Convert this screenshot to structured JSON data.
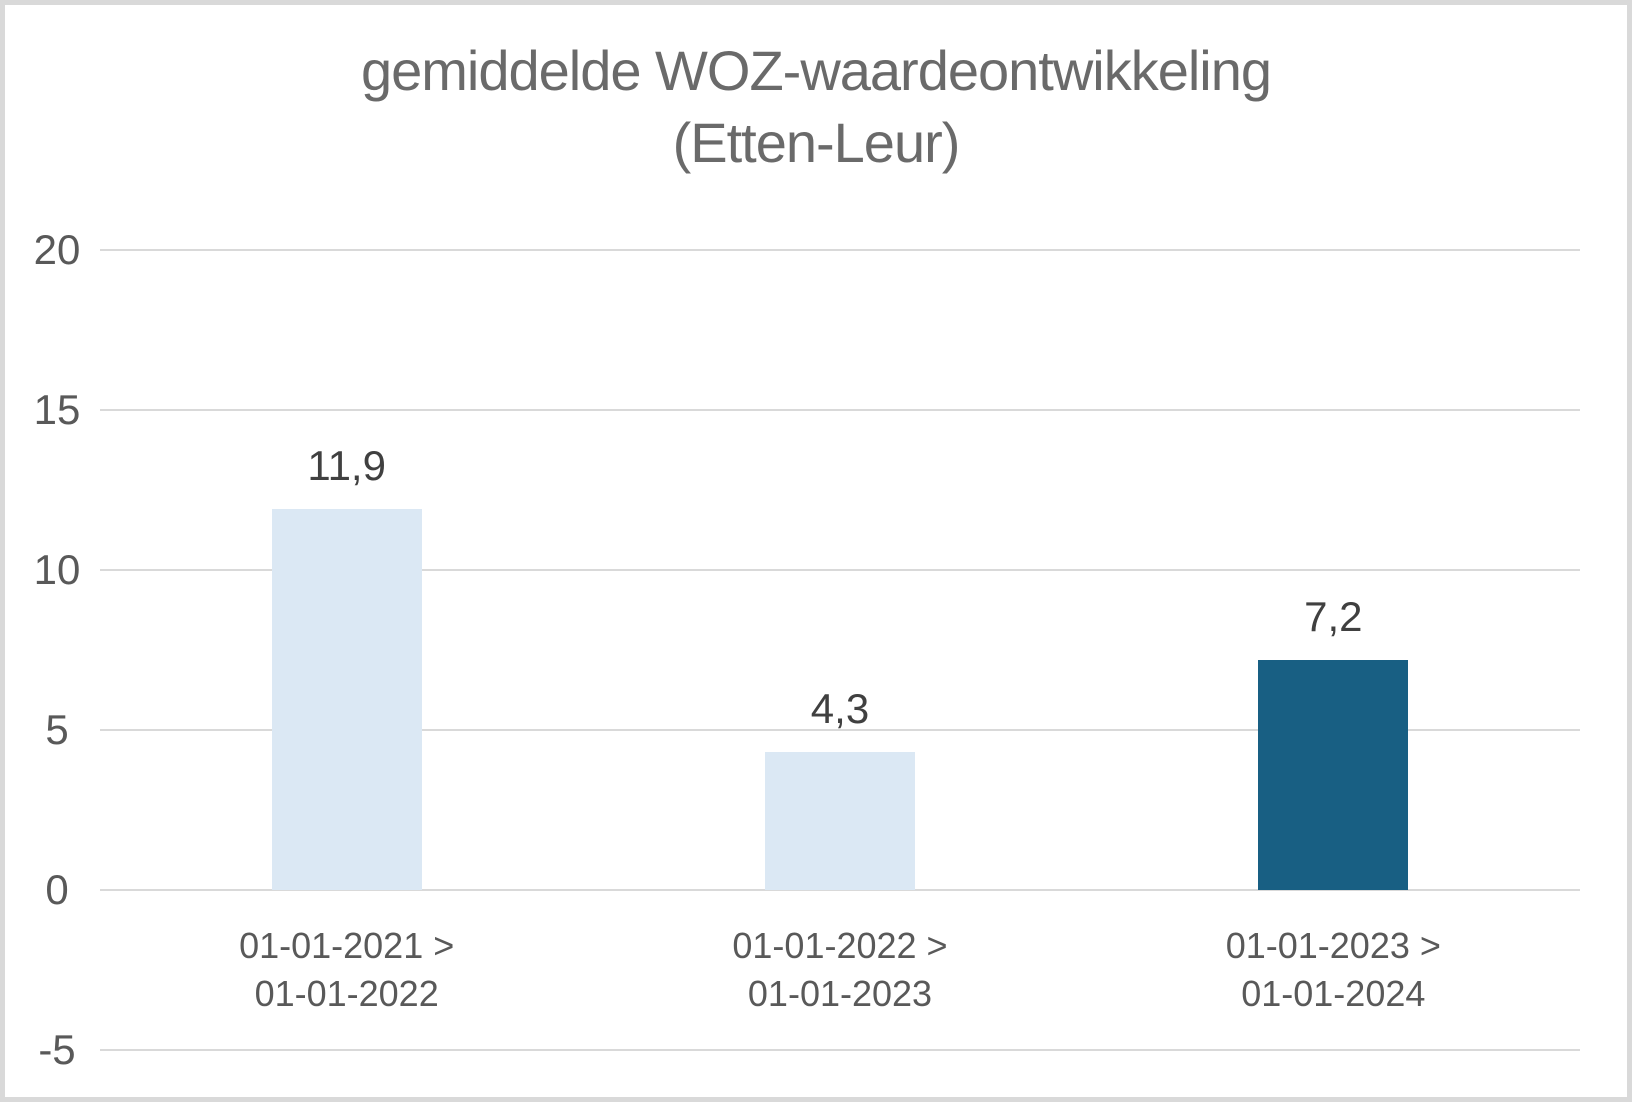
{
  "chart_data": {
    "type": "bar",
    "title": "gemiddelde WOZ-waardeontwikkeling (Etten-Leur)",
    "title_lines": [
      "gemiddelde WOZ-waardeontwikkeling",
      "(Etten-Leur)"
    ],
    "categories": [
      "01-01-2021 >\n01-01-2022",
      "01-01-2022 >\n01-01-2023",
      "01-01-2023 >\n01-01-2024"
    ],
    "values": [
      11.9,
      4.3,
      7.2
    ],
    "value_labels": [
      "11,9",
      "4,3",
      "7,2"
    ],
    "bar_colors": [
      "#dbe8f4",
      "#dbe8f4",
      "#185f83"
    ],
    "y_ticks": [
      -5,
      0,
      5,
      10,
      15,
      20
    ],
    "y_tick_labels": [
      "-5",
      "0",
      "5",
      "10",
      "15",
      "20"
    ],
    "ylim": [
      -5,
      20
    ],
    "xlabel": "",
    "ylabel": "",
    "grid": "horizontal",
    "legend": "none",
    "colors": {
      "gridline": "#d9d9d9",
      "frame": "#d9d9d9",
      "background": "#ffffff",
      "title_text": "#6a6a6a",
      "tick_text": "#595959",
      "category_text": "#595959",
      "value_label_text": "#404040",
      "bar_light": "#dbe8f4",
      "bar_dark": "#185f83"
    }
  }
}
